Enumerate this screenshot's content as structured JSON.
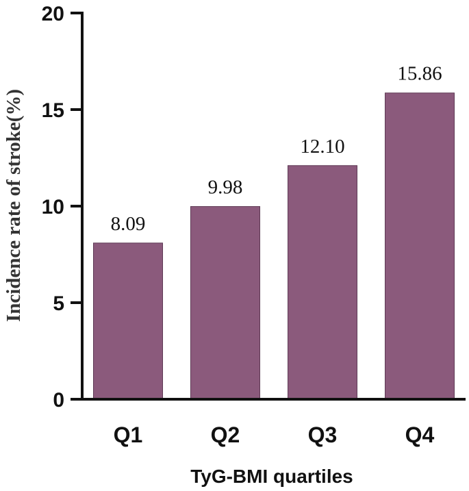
{
  "chart_data": {
    "type": "bar",
    "categories": [
      "Q1",
      "Q2",
      "Q3",
      "Q4"
    ],
    "values": [
      8.09,
      9.98,
      12.1,
      15.86
    ],
    "data_labels": [
      "8.09",
      "9.98",
      "12.10",
      "15.86"
    ],
    "title": "",
    "xlabel": "TyG-BMI quartiles",
    "ylabel": "Incidence rate of stroke(%)",
    "ylim": [
      0,
      20
    ],
    "yticks": [
      0,
      5,
      10,
      15,
      20
    ],
    "ytick_labels": [
      "0",
      "5",
      "10",
      "15",
      "20"
    ],
    "grid": false,
    "legend": "none",
    "bar_color": "#8b5a7c"
  }
}
